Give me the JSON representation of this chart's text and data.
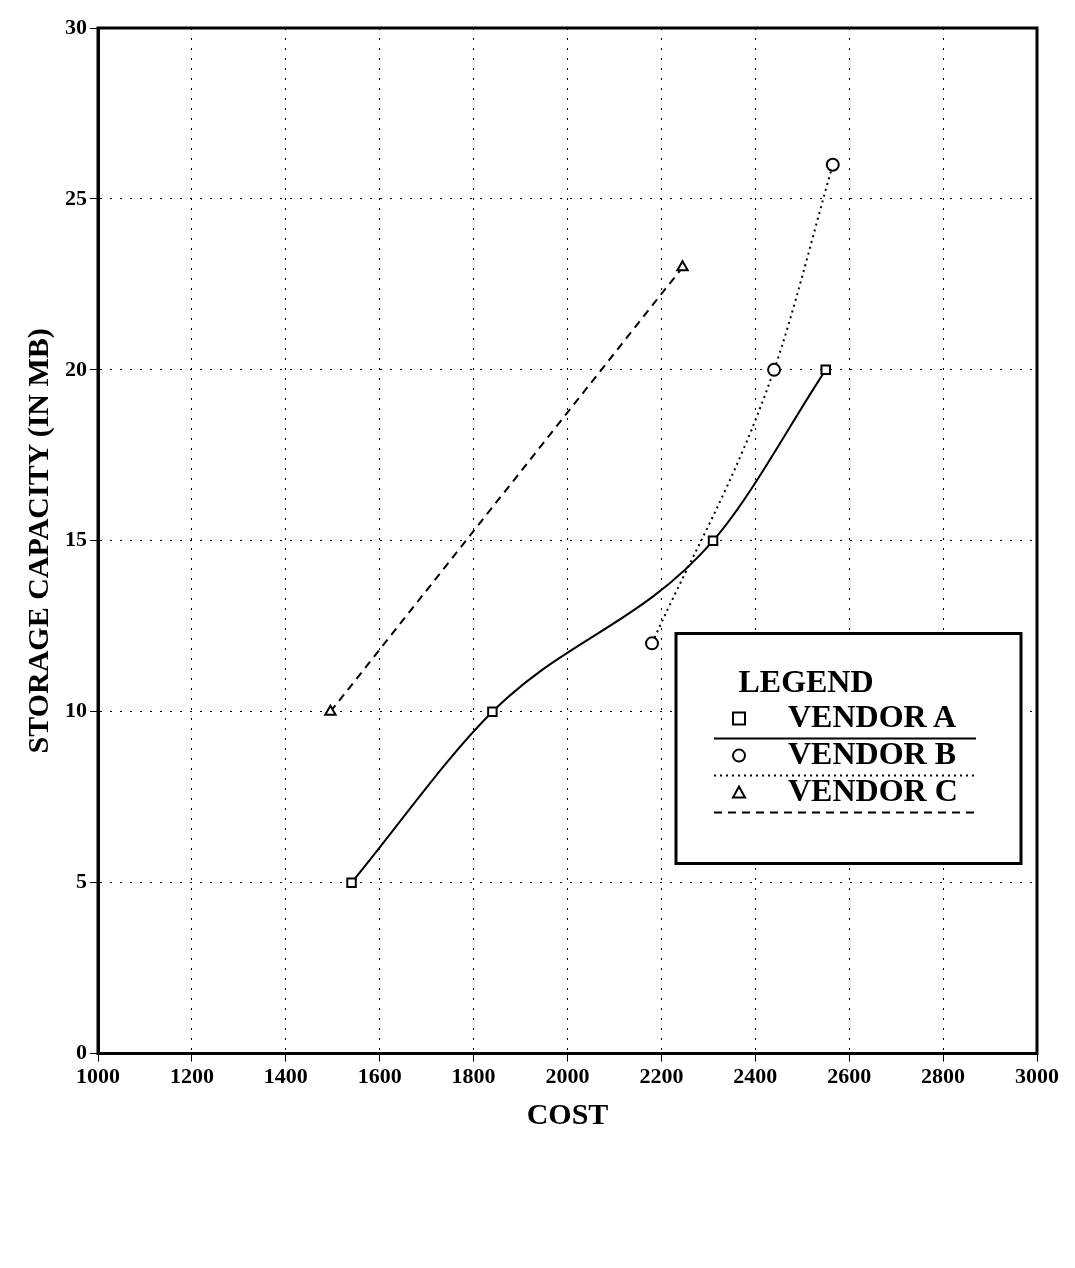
{
  "chart_data": {
    "type": "line",
    "xlabel": "COST",
    "ylabel": "STORAGE CAPACITY (IN MB)",
    "legend_title": "LEGEND",
    "xlim": [
      1000,
      3000
    ],
    "xticks": [
      1000,
      1200,
      1400,
      1600,
      1800,
      2000,
      2200,
      2400,
      2600,
      2800,
      3000
    ],
    "ylim": [
      0,
      30
    ],
    "yticks": [
      0,
      5,
      10,
      15,
      20,
      25,
      30
    ],
    "grid": true,
    "legend": "bottom right",
    "series": [
      {
        "name": "VENDOR A",
        "color": "#000000",
        "x": [
          1540,
          1840,
          2310,
          2550
        ],
        "values": [
          5,
          10,
          15,
          20
        ],
        "marker": "square",
        "line_style": "solid"
      },
      {
        "name": "VENDOR B",
        "color": "#000000",
        "x": [
          2180,
          2440,
          2565
        ],
        "values": [
          12,
          20,
          26
        ],
        "marker": "circle",
        "line_style": "dotted"
      },
      {
        "name": "VENDOR C",
        "color": "#000000",
        "x": [
          1495,
          2245
        ],
        "values": [
          10,
          23
        ],
        "marker": "triangle",
        "line_style": "dashed"
      }
    ]
  }
}
